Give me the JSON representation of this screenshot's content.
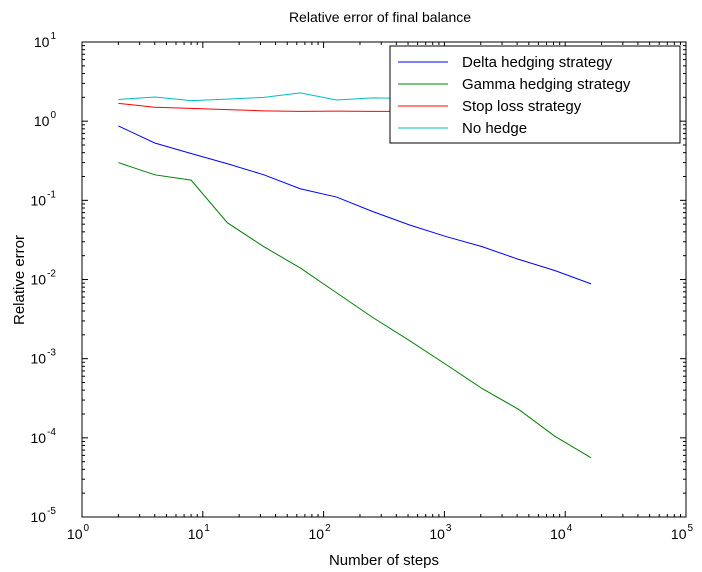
{
  "chart_data": {
    "type": "line",
    "title": "Relative error of final balance",
    "xlabel": "Number of steps",
    "ylabel": "Relative error",
    "x_scale": "log",
    "y_scale": "log",
    "xlim": [
      1,
      100000
    ],
    "ylim": [
      1e-05,
      10
    ],
    "grid": false,
    "legend_position": "top-right",
    "x_ticks": [
      {
        "base": "10",
        "exp": "0",
        "value": 1
      },
      {
        "base": "10",
        "exp": "1",
        "value": 10
      },
      {
        "base": "10",
        "exp": "2",
        "value": 100
      },
      {
        "base": "10",
        "exp": "3",
        "value": 1000
      },
      {
        "base": "10",
        "exp": "4",
        "value": 10000
      },
      {
        "base": "10",
        "exp": "5",
        "value": 100000
      }
    ],
    "y_ticks": [
      {
        "base": "10",
        "exp": "-5",
        "value": 1e-05
      },
      {
        "base": "10",
        "exp": "-4",
        "value": 0.0001
      },
      {
        "base": "10",
        "exp": "-3",
        "value": 0.001
      },
      {
        "base": "10",
        "exp": "-2",
        "value": 0.01
      },
      {
        "base": "10",
        "exp": "-1",
        "value": 0.1
      },
      {
        "base": "10",
        "exp": "0",
        "value": 1
      },
      {
        "base": "10",
        "exp": "1",
        "value": 10
      }
    ],
    "x": [
      2,
      4,
      8,
      16,
      32,
      64,
      128,
      256,
      512,
      1024,
      2048,
      4096,
      8192,
      16384
    ],
    "series": [
      {
        "name": "Delta hedging strategy",
        "color": "#0000ff",
        "values": [
          0.87,
          0.53,
          0.39,
          0.29,
          0.21,
          0.14,
          0.11,
          0.072,
          0.049,
          0.035,
          0.026,
          0.018,
          0.013,
          0.0088
        ]
      },
      {
        "name": "Gamma hedging strategy",
        "color": "#008000",
        "values": [
          0.3,
          0.21,
          0.18,
          0.052,
          0.026,
          0.014,
          0.0068,
          0.0033,
          0.0017,
          0.00085,
          0.00042,
          0.00023,
          0.000105,
          5.6e-05
        ]
      },
      {
        "name": "Stop loss strategy",
        "color": "#ff0000",
        "values": [
          1.68,
          1.5,
          1.45,
          1.4,
          1.35,
          1.33,
          1.34,
          1.33,
          1.33,
          1.33,
          1.33,
          1.33,
          1.33,
          1.33
        ]
      },
      {
        "name": "No hedge",
        "color": "#00bfbf",
        "values": [
          1.88,
          2.02,
          1.82,
          1.9,
          2.0,
          2.28,
          1.85,
          1.97,
          1.93,
          1.95,
          1.92,
          1.95,
          1.93,
          1.95
        ]
      }
    ]
  }
}
